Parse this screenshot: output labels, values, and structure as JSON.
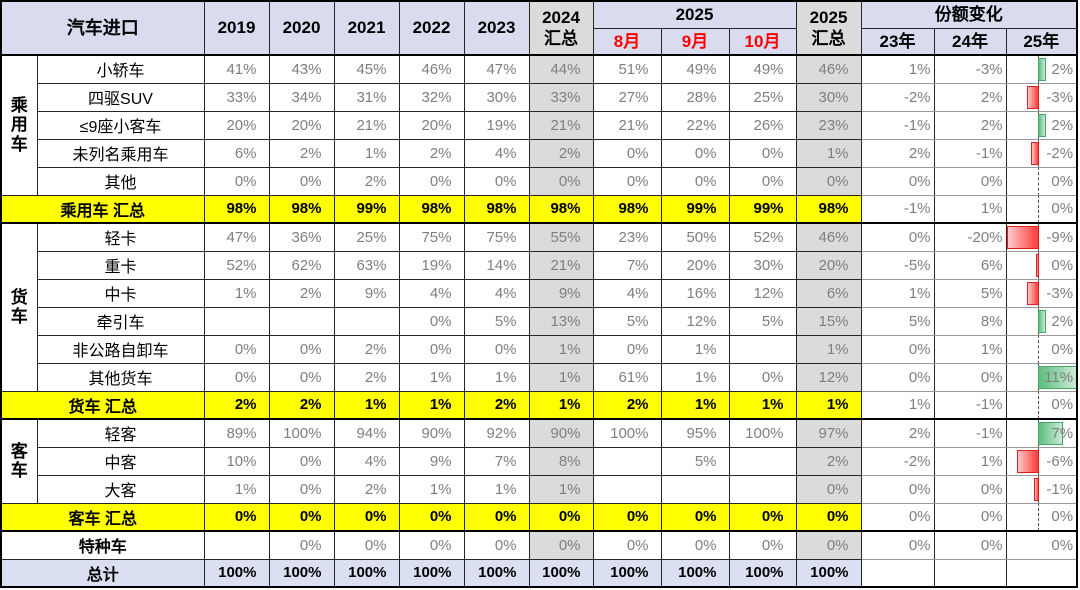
{
  "chart_data": {
    "type": "table",
    "title": "汽车进口份额表",
    "header": {
      "title": "汽车进口",
      "years": [
        "2019",
        "2020",
        "2021",
        "2022",
        "2023"
      ],
      "col_2024_total": "2024\n汇总",
      "group_2025": "2025",
      "months": [
        "8月",
        "9月",
        "10月"
      ],
      "col_2025_total": "2025\n汇总",
      "share_title": "份额变化",
      "share_cols": [
        "23年",
        "24年",
        "25年"
      ]
    },
    "bar_axis": {
      "min": -9,
      "max": 11
    },
    "colors": {
      "header_fill": "#D8DCEE",
      "summary_col_fill": "#DBDBDB",
      "sum_row_fill": "#FFFF00",
      "grand_row_fill": "#DAE0F1",
      "data_text": "#7F7F7F",
      "month_header_text": "#FF0000",
      "bar_positive": "#5DBE7E",
      "bar_negative": "#FF3B3B"
    },
    "rows": [
      {
        "type": "data",
        "group": "乘\n用\n车",
        "group_span": 5,
        "label": "小轿车",
        "cells": [
          "41%",
          "43%",
          "45%",
          "46%",
          "47%",
          "44%",
          "51%",
          "49%",
          "49%",
          "46%",
          "1%",
          "-3%",
          "2%"
        ],
        "bar": 2,
        "dash": true
      },
      {
        "type": "data",
        "label": "四驱SUV",
        "cells": [
          "33%",
          "34%",
          "31%",
          "32%",
          "30%",
          "33%",
          "27%",
          "28%",
          "25%",
          "30%",
          "-2%",
          "2%",
          "-3%"
        ],
        "bar": -3,
        "dash": true
      },
      {
        "type": "data",
        "label": "≤9座小客车",
        "cells": [
          "20%",
          "20%",
          "21%",
          "20%",
          "19%",
          "21%",
          "21%",
          "22%",
          "26%",
          "23%",
          "-1%",
          "2%",
          "2%"
        ],
        "bar": 2,
        "dash": true
      },
      {
        "type": "data",
        "label": "未列名乘用车",
        "cells": [
          "6%",
          "2%",
          "1%",
          "2%",
          "4%",
          "2%",
          "0%",
          "0%",
          "0%",
          "1%",
          "2%",
          "-1%",
          "-2%"
        ],
        "bar": -2,
        "dash": true
      },
      {
        "type": "data",
        "label": "其他",
        "cells": [
          "0%",
          "0%",
          "2%",
          "0%",
          "0%",
          "0%",
          "0%",
          "0%",
          "0%",
          "0%",
          "0%",
          "0%",
          "0%"
        ],
        "bar": 0,
        "dash": true
      },
      {
        "type": "sum",
        "label": "乘用车 汇总",
        "cells": [
          "98%",
          "98%",
          "99%",
          "98%",
          "98%",
          "98%",
          "98%",
          "99%",
          "99%",
          "98%",
          "-1%",
          "1%",
          "0%"
        ],
        "bar": 0,
        "dash": true
      },
      {
        "type": "data",
        "group": "货\n车",
        "group_span": 6,
        "label": "轻卡",
        "cells": [
          "47%",
          "36%",
          "25%",
          "75%",
          "75%",
          "55%",
          "23%",
          "50%",
          "52%",
          "46%",
          "0%",
          "-20%",
          "-9%"
        ],
        "bar": -9,
        "dash": true
      },
      {
        "type": "data",
        "label": "重卡",
        "cells": [
          "52%",
          "62%",
          "63%",
          "19%",
          "14%",
          "21%",
          "7%",
          "20%",
          "30%",
          "20%",
          "-5%",
          "6%",
          "0%"
        ],
        "bar": -0.5,
        "dash": true
      },
      {
        "type": "data",
        "label": "中卡",
        "cells": [
          "1%",
          "2%",
          "9%",
          "4%",
          "4%",
          "9%",
          "4%",
          "16%",
          "12%",
          "6%",
          "1%",
          "5%",
          "-3%"
        ],
        "bar": -3,
        "dash": true
      },
      {
        "type": "data",
        "label": "牵引车",
        "cells": [
          "",
          "",
          "",
          "0%",
          "5%",
          "13%",
          "5%",
          "12%",
          "5%",
          "15%",
          "5%",
          "8%",
          "2%"
        ],
        "bar": 2,
        "dash": true
      },
      {
        "type": "data",
        "label": "非公路自卸车",
        "cells": [
          "0%",
          "0%",
          "2%",
          "0%",
          "0%",
          "1%",
          "0%",
          "1%",
          "",
          "1%",
          "0%",
          "1%",
          "0%"
        ],
        "bar": 0,
        "dash": true
      },
      {
        "type": "data",
        "label": "其他货车",
        "cells": [
          "0%",
          "0%",
          "2%",
          "1%",
          "1%",
          "1%",
          "61%",
          "1%",
          "0%",
          "12%",
          "0%",
          "0%",
          "11%"
        ],
        "bar": 11,
        "dash": true
      },
      {
        "type": "sum",
        "label": "货车 汇总",
        "cells": [
          "2%",
          "2%",
          "1%",
          "1%",
          "2%",
          "1%",
          "2%",
          "1%",
          "1%",
          "1%",
          "1%",
          "-1%",
          "0%"
        ],
        "bar": 0,
        "dash": true
      },
      {
        "type": "data",
        "group": "客\n车",
        "group_span": 3,
        "label": "轻客",
        "cells": [
          "89%",
          "100%",
          "94%",
          "90%",
          "92%",
          "90%",
          "100%",
          "95%",
          "100%",
          "97%",
          "2%",
          "-1%",
          "7%"
        ],
        "bar": 7,
        "dash": true
      },
      {
        "type": "data",
        "label": "中客",
        "cells": [
          "10%",
          "0%",
          "4%",
          "9%",
          "7%",
          "8%",
          "",
          "5%",
          "",
          "2%",
          "-2%",
          "1%",
          "-6%"
        ],
        "bar": -6,
        "dash": true
      },
      {
        "type": "data",
        "label": "大客",
        "cells": [
          "1%",
          "0%",
          "2%",
          "1%",
          "1%",
          "1%",
          "",
          "",
          "",
          "0%",
          "0%",
          "0%",
          "-1%"
        ],
        "bar": -1,
        "dash": true
      },
      {
        "type": "sum",
        "label": "客车 汇总",
        "cells": [
          "0%",
          "0%",
          "0%",
          "0%",
          "0%",
          "0%",
          "0%",
          "0%",
          "0%",
          "0%",
          "0%",
          "0%",
          "0%"
        ],
        "bar": 0,
        "dash": true
      },
      {
        "type": "special",
        "label": "特种车",
        "cells": [
          "",
          "0%",
          "0%",
          "0%",
          "0%",
          "0%",
          "0%",
          "0%",
          "0%",
          "0%",
          "0%",
          "0%",
          "0%"
        ],
        "bar": 0,
        "dash": false
      },
      {
        "type": "grand",
        "label": "总计",
        "cells": [
          "100%",
          "100%",
          "100%",
          "100%",
          "100%",
          "100%",
          "100%",
          "100%",
          "100%",
          "100%",
          "",
          "",
          ""
        ],
        "bar": 0,
        "dash": false
      }
    ]
  }
}
